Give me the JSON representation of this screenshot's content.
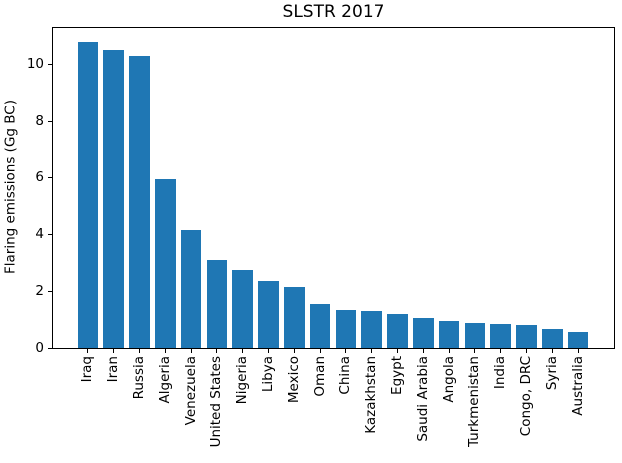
{
  "chart_data": {
    "type": "bar",
    "title": "SLSTR 2017",
    "xlabel": "",
    "ylabel": "Flaring emissions (Gg BC)",
    "categories": [
      "Iraq",
      "Iran",
      "Russia",
      "Algeria",
      "Venezuela",
      "United States",
      "Nigeria",
      "Libya",
      "Mexico",
      "Oman",
      "China",
      "Kazakhstan",
      "Egypt",
      "Saudi Arabia",
      "Angola",
      "Turkmenistan",
      "India",
      "Congo, DRC",
      "Syria",
      "Australia"
    ],
    "values": [
      10.8,
      10.5,
      10.3,
      5.95,
      4.15,
      3.1,
      2.75,
      2.35,
      2.15,
      1.55,
      1.35,
      1.3,
      1.2,
      1.05,
      0.95,
      0.87,
      0.85,
      0.8,
      0.67,
      0.55
    ],
    "bar_color": "#1f77b4",
    "axis_color": "#000000",
    "background_color": "#ffffff",
    "ylim": [
      0,
      11.32
    ],
    "yticks": [
      0,
      2,
      4,
      6,
      8,
      10
    ],
    "grid": false,
    "legend": null
  }
}
